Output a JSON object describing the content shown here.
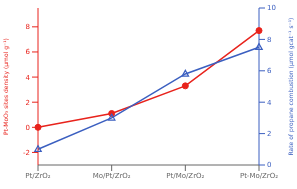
{
  "chart_data": {
    "type": "line",
    "categories": [
      "Pt/ZrO₂",
      "Mo/Pt/ZrO₂",
      "Pt/Mo/ZrO₂",
      "Pt-Mo/ZrO₂"
    ],
    "y_label": "Pt-MoO₃ sites density (μmol g⁻¹)",
    "y2_label": "Rate of propane combustion (μmol gcat⁻¹ s⁻¹)",
    "ylim": [
      -3.0,
      9.5
    ],
    "yticks": [
      -2,
      0,
      2,
      4,
      6,
      8
    ],
    "y2lim": [
      0,
      10
    ],
    "y2ticks": [
      0,
      2,
      4,
      6,
      8,
      10
    ],
    "grid": false,
    "series": [
      {
        "color": "#e8231c",
        "values": [
          0.0,
          1.1,
          3.3,
          7.7
        ],
        "marker": "circle",
        "axis": "y"
      },
      {
        "color": "#3b5fc0",
        "values": [
          1.0,
          3.0,
          5.8,
          7.5
        ],
        "marker": "triangle",
        "axis": "y2"
      }
    ]
  }
}
